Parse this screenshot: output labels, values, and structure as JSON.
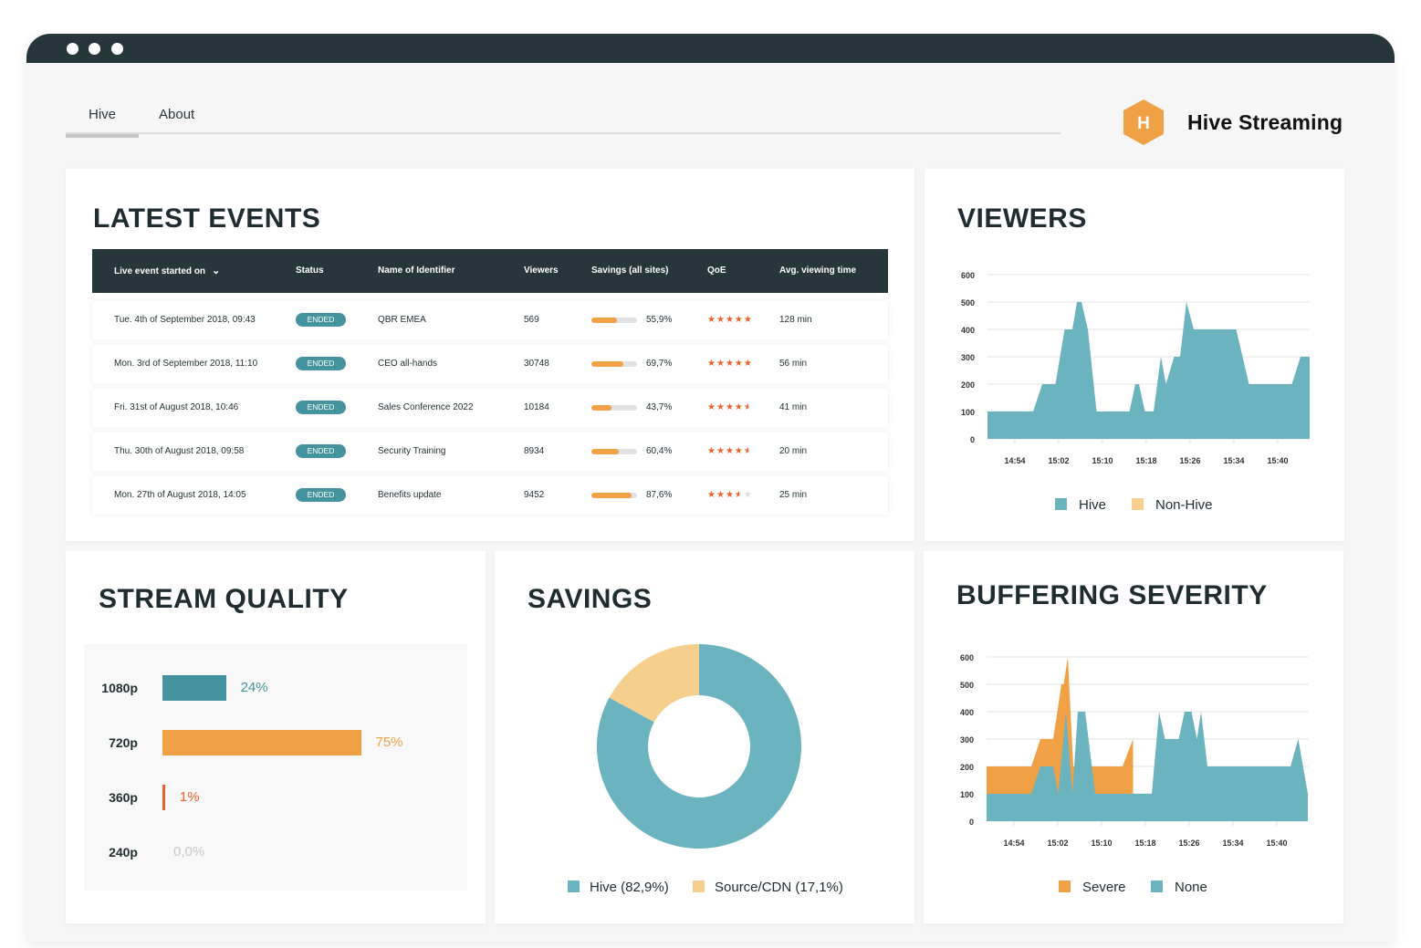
{
  "nav": {
    "tabs": [
      {
        "label": "Hive",
        "active": true
      },
      {
        "label": "About",
        "active": false
      }
    ]
  },
  "brand": {
    "logo_letter": "H",
    "name": "Hive Streaming"
  },
  "colors": {
    "dark": "#27363a",
    "teal": "#6bb3bf",
    "teal_dark": "#45939e",
    "orange": "#f0a045",
    "orange_light": "#f5cf8e",
    "red_orange": "#e8622a"
  },
  "latest_events": {
    "title": "LATEST EVENTS",
    "columns": [
      "Live event started on",
      "Status",
      "Name of Identifier",
      "Viewers",
      "Savings (all sites)",
      "QoE",
      "Avg. viewing time"
    ],
    "sort_icon": "chevron-down-icon",
    "rows": [
      {
        "started": "Tue. 4th of September 2018, 09:43",
        "status": "ENDED",
        "name": "QBR EMEA",
        "viewers": "569",
        "savings": "55,9%",
        "savings_pct": 55.9,
        "qoe": 5,
        "avg_time": "128 min"
      },
      {
        "started": "Mon. 3rd of September 2018, 11:10",
        "status": "ENDED",
        "name": "CEO all-hands",
        "viewers": "30748",
        "savings": "69,7%",
        "savings_pct": 69.7,
        "qoe": 5,
        "avg_time": "56 min"
      },
      {
        "started": "Fri. 31st of August 2018, 10:46",
        "status": "ENDED",
        "name": "Sales Conference 2022",
        "viewers": "10184",
        "savings": "43,7%",
        "savings_pct": 43.7,
        "qoe": 4.5,
        "avg_time": "41 min"
      },
      {
        "started": "Thu. 30th of August 2018, 09:58",
        "status": "ENDED",
        "name": "Security Training",
        "viewers": "8934",
        "savings": "60,4%",
        "savings_pct": 60.4,
        "qoe": 4.5,
        "avg_time": "20 min"
      },
      {
        "started": "Mon. 27th of August 2018, 14:05",
        "status": "ENDED",
        "name": "Benefits update",
        "viewers": "9452",
        "savings": "87,6%",
        "savings_pct": 87.6,
        "qoe": 3.5,
        "avg_time": "25 min"
      }
    ]
  },
  "chart_data": [
    {
      "id": "viewers",
      "type": "area",
      "title": "VIEWERS",
      "ylim": [
        0,
        600
      ],
      "yticks": [
        0,
        100,
        200,
        300,
        400,
        500,
        600
      ],
      "xticks": [
        "14:54",
        "15:02",
        "15:10",
        "15:18",
        "15:26",
        "15:34",
        "15:40"
      ],
      "xrange": [
        "14:49",
        "15:48"
      ],
      "grid": true,
      "legend_placement": "bottom",
      "legend": [
        {
          "name": "Hive",
          "color": "#6bb3bf"
        },
        {
          "name": "Non-Hive",
          "color": "#f5cf8e"
        }
      ],
      "series": [
        {
          "name": "Hive",
          "color": "#6bb3bf",
          "points": [
            [
              "14:49:00",
              100
            ],
            [
              "14:57:20",
              100
            ],
            [
              "14:59:00",
              200
            ],
            [
              "15:01:25",
              200
            ],
            [
              "15:03:05",
              400
            ],
            [
              "15:04:30",
              400
            ],
            [
              "15:05:20",
              500
            ],
            [
              "15:06:10",
              500
            ],
            [
              "15:07:20",
              400
            ],
            [
              "15:08:55",
              100
            ],
            [
              "15:14:55",
              100
            ],
            [
              "15:16:00",
              200
            ],
            [
              "15:16:40",
              200
            ],
            [
              "15:17:45",
              100
            ],
            [
              "15:19:20",
              100
            ],
            [
              "15:20:40",
              300
            ],
            [
              "15:21:35",
              200
            ],
            [
              "15:23:05",
              300
            ],
            [
              "15:24:10",
              300
            ],
            [
              "15:25:20",
              500
            ],
            [
              "15:26:40",
              400
            ],
            [
              "15:34:25",
              400
            ],
            [
              "15:36:45",
              200
            ],
            [
              "15:44:35",
              200
            ],
            [
              "15:46:10",
              300
            ],
            [
              "15:47:50",
              300
            ]
          ]
        }
      ]
    },
    {
      "id": "buffering",
      "type": "area",
      "title": "BUFFERING SEVERITY",
      "ylim": [
        0,
        600
      ],
      "yticks": [
        0,
        100,
        200,
        300,
        400,
        500,
        600
      ],
      "xticks": [
        "14:54",
        "15:02",
        "15:10",
        "15:18",
        "15:26",
        "15:34",
        "15:40"
      ],
      "xrange": [
        "14:49",
        "15:48"
      ],
      "grid": true,
      "legend_placement": "bottom",
      "legend": [
        {
          "name": "Severe",
          "color": "#f0a045"
        },
        {
          "name": "None",
          "color": "#6bb3bf"
        }
      ],
      "series": [
        {
          "name": "Severe",
          "color": "#f0a045",
          "points": [
            [
              "14:49:00",
              200
            ],
            [
              "14:57:10",
              200
            ],
            [
              "14:58:50",
              300
            ],
            [
              "15:01:10",
              300
            ],
            [
              "15:02:40",
              500
            ],
            [
              "15:03:05",
              500
            ],
            [
              "15:03:50",
              600
            ],
            [
              "15:04:50",
              200
            ],
            [
              "15:13:50",
              200
            ],
            [
              "15:15:45",
              300
            ]
          ]
        },
        {
          "name": "None",
          "color": "#6bb3bf",
          "points": [
            [
              "14:49:00",
              100
            ],
            [
              "14:57:10",
              100
            ],
            [
              "14:58:50",
              200
            ],
            [
              "15:01:10",
              200
            ],
            [
              "15:02:05",
              100
            ],
            [
              "15:03:30",
              400
            ],
            [
              "15:04:40",
              100
            ],
            [
              "15:05:40",
              400
            ],
            [
              "15:07:00",
              400
            ],
            [
              "15:08:50",
              100
            ],
            [
              "15:19:10",
              100
            ],
            [
              "15:20:30",
              400
            ],
            [
              "15:21:35",
              300
            ],
            [
              "15:24:05",
              300
            ],
            [
              "15:25:10",
              400
            ],
            [
              "15:26:25",
              400
            ],
            [
              "15:27:25",
              300
            ],
            [
              "15:28:10",
              400
            ],
            [
              "15:29:20",
              200
            ],
            [
              "15:44:30",
              200
            ],
            [
              "15:45:55",
              300
            ],
            [
              "15:47:40",
              100
            ]
          ]
        }
      ]
    },
    {
      "id": "savings",
      "type": "pie",
      "title": "SAVINGS",
      "donut": true,
      "slices": [
        {
          "name": "Hive",
          "value": 82.9,
          "label": "Hive (82,9%)",
          "color": "#6bb3bf"
        },
        {
          "name": "Source/CDN",
          "value": 17.1,
          "label": "Source/CDN (17,1%)",
          "color": "#f5cf8e"
        }
      ],
      "legend_placement": "bottom"
    },
    {
      "id": "stream_quality",
      "type": "bar",
      "orientation": "horizontal",
      "title": "STREAM QUALITY",
      "categories": [
        "1080p",
        "720p",
        "360p",
        "240p"
      ],
      "values": [
        24,
        75,
        1,
        0
      ],
      "value_labels": [
        "24%",
        "75%",
        "1%",
        "0,0%"
      ],
      "colors": [
        "#45939e",
        "#f0a045",
        "#e8622a",
        "#c8c8c8"
      ]
    }
  ]
}
